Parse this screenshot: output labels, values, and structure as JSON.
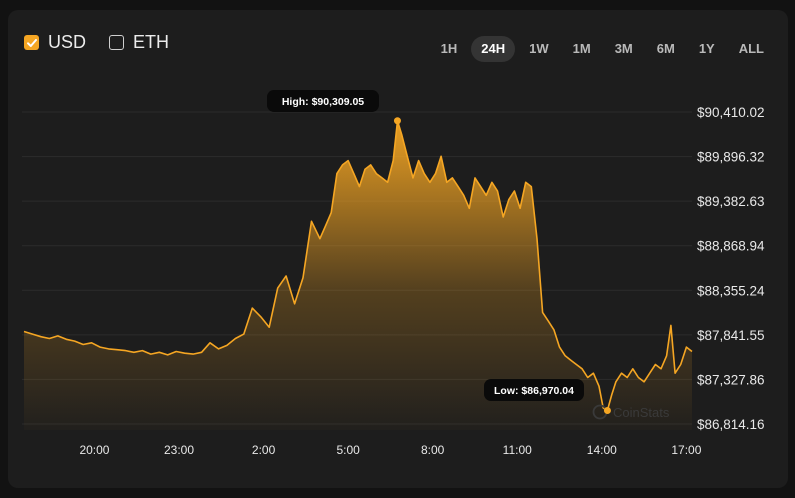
{
  "currencies": [
    {
      "label": "USD",
      "checked": true
    },
    {
      "label": "ETH",
      "checked": false
    }
  ],
  "ranges": [
    "1H",
    "24H",
    "1W",
    "1M",
    "3M",
    "6M",
    "1Y",
    "ALL"
  ],
  "active_range": "24H",
  "watermark": "CoinStats",
  "colors": {
    "accent": "#f5a623",
    "background": "#1d1d1d",
    "grid": "#2c2c2c"
  },
  "chart_data": {
    "type": "area",
    "title": "",
    "xlabel": "",
    "ylabel": "",
    "x_tick_labels": [
      "20:00",
      "23:00",
      "2:00",
      "5:00",
      "8:00",
      "11:00",
      "14:00",
      "17:00"
    ],
    "y_tick_labels": [
      "$90,410.02",
      "$89,896.32",
      "$89,382.63",
      "$88,868.94",
      "$88,355.24",
      "$87,841.55",
      "$87,327.86",
      "$86,814.16"
    ],
    "ylim": [
      86814.16,
      90410.02
    ],
    "x_unit": "hours",
    "x_range": [
      17.5,
      41.2
    ],
    "grid": true,
    "high": {
      "label": "High: $90,309.05",
      "x": 30.75,
      "value": 90309.05
    },
    "low": {
      "label": "Low: $86,970.04",
      "x": 38.2,
      "value": 86970.04
    },
    "series": [
      {
        "x": [
          17.5,
          17.8,
          18.1,
          18.4,
          18.7,
          19.0,
          19.3,
          19.6,
          19.9,
          20.2,
          20.5,
          20.8,
          21.1,
          21.4,
          21.7,
          22.0,
          22.3,
          22.6,
          22.9,
          23.2,
          23.5,
          23.8,
          24.1,
          24.4,
          24.7,
          25.0,
          25.3,
          25.6,
          25.9,
          26.2,
          26.5,
          26.8,
          27.1,
          27.4,
          27.7,
          28.0,
          28.2,
          28.4,
          28.6,
          28.8,
          29.0,
          29.2,
          29.4,
          29.6,
          29.8,
          30.0,
          30.2,
          30.4,
          30.6,
          30.75,
          30.9,
          31.1,
          31.3,
          31.5,
          31.7,
          31.9,
          32.1,
          32.3,
          32.5,
          32.7,
          32.9,
          33.1,
          33.3,
          33.5,
          33.7,
          33.9,
          34.1,
          34.3,
          34.5,
          34.7,
          34.9,
          35.1,
          35.3,
          35.5,
          35.7,
          35.9,
          36.1,
          36.3,
          36.5,
          36.7,
          36.9,
          37.1,
          37.3,
          37.5,
          37.7,
          37.9,
          38.05,
          38.2,
          38.35,
          38.5,
          38.7,
          38.9,
          39.1,
          39.3,
          39.5,
          39.7,
          39.9,
          40.1,
          40.3,
          40.45,
          40.6,
          40.8,
          41.0,
          41.2
        ],
        "y": [
          87880,
          87850,
          87820,
          87800,
          87830,
          87790,
          87770,
          87730,
          87750,
          87700,
          87680,
          87670,
          87660,
          87640,
          87660,
          87620,
          87640,
          87610,
          87650,
          87630,
          87620,
          87640,
          87750,
          87680,
          87720,
          87800,
          87850,
          88150,
          88050,
          87930,
          88380,
          88520,
          88200,
          88500,
          89150,
          88950,
          89100,
          89250,
          89700,
          89800,
          89850,
          89700,
          89550,
          89750,
          89800,
          89700,
          89650,
          89600,
          89850,
          90309,
          90150,
          89900,
          89650,
          89850,
          89700,
          89600,
          89700,
          89900,
          89600,
          89650,
          89550,
          89450,
          89300,
          89650,
          89550,
          89450,
          89600,
          89500,
          89200,
          89400,
          89500,
          89300,
          89600,
          89550,
          88950,
          88100,
          88000,
          87900,
          87700,
          87600,
          87550,
          87500,
          87450,
          87350,
          87400,
          87250,
          87000,
          86970,
          87150,
          87300,
          87400,
          87350,
          87450,
          87350,
          87300,
          87400,
          87500,
          87450,
          87600,
          87950,
          87400,
          87500,
          87700,
          87650
        ]
      }
    ]
  }
}
